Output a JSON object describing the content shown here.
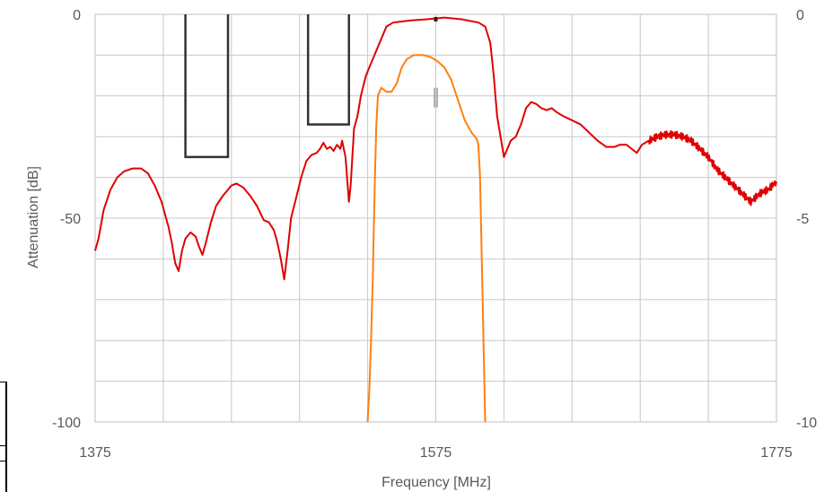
{
  "chart_data": {
    "type": "line",
    "title": "",
    "xlabel": "Frequency [MHz]",
    "ylabel": "Attenuation [dB]",
    "xlim": [
      1375,
      1775
    ],
    "ylim": [
      -100,
      0
    ],
    "y2lim": [
      -10,
      0
    ],
    "x_ticks": [
      "1375",
      "1575",
      "1775"
    ],
    "y_ticks": [
      "0",
      "-50",
      "-100"
    ],
    "y2_ticks": [
      "0",
      "-5",
      "-10"
    ],
    "grid": true,
    "colors": {
      "wideband": "#e00000",
      "passband": "#ff7f0e",
      "mask": "#333333",
      "grid": "#c8c8c8"
    },
    "series": [
      {
        "key": "wideband",
        "axis": "left",
        "points": [
          [
            1375,
            -58
          ],
          [
            1377,
            -55
          ],
          [
            1380,
            -48
          ],
          [
            1384,
            -43
          ],
          [
            1388,
            -40
          ],
          [
            1392,
            -38.5
          ],
          [
            1397,
            -37.8
          ],
          [
            1402,
            -37.8
          ],
          [
            1406,
            -39
          ],
          [
            1410,
            -42
          ],
          [
            1414,
            -46
          ],
          [
            1418,
            -52
          ],
          [
            1420,
            -56
          ],
          [
            1422,
            -61
          ],
          [
            1424,
            -63
          ],
          [
            1426,
            -58
          ],
          [
            1428,
            -55
          ],
          [
            1431,
            -53.5
          ],
          [
            1434,
            -54.5
          ],
          [
            1436,
            -57
          ],
          [
            1438,
            -59
          ],
          [
            1440,
            -56
          ],
          [
            1443,
            -51
          ],
          [
            1446,
            -47
          ],
          [
            1450,
            -44.5
          ],
          [
            1455,
            -42
          ],
          [
            1458,
            -41.5
          ],
          [
            1462,
            -42.5
          ],
          [
            1466,
            -44.5
          ],
          [
            1470,
            -47
          ],
          [
            1474,
            -50.5
          ],
          [
            1477,
            -51
          ],
          [
            1480,
            -53
          ],
          [
            1482,
            -56
          ],
          [
            1484,
            -60
          ],
          [
            1486,
            -65
          ],
          [
            1488,
            -58
          ],
          [
            1490,
            -50
          ],
          [
            1493,
            -45
          ],
          [
            1496,
            -40
          ],
          [
            1499,
            -36
          ],
          [
            1502,
            -34.5
          ],
          [
            1505,
            -34
          ],
          [
            1507,
            -33
          ],
          [
            1509,
            -31.5
          ],
          [
            1511,
            -33
          ],
          [
            1513,
            -32.5
          ],
          [
            1515,
            -33.5
          ],
          [
            1517,
            -32
          ],
          [
            1519,
            -33
          ],
          [
            1520,
            -31
          ],
          [
            1522,
            -35
          ],
          [
            1524,
            -46
          ],
          [
            1525,
            -42
          ],
          [
            1527,
            -28
          ],
          [
            1529,
            -25
          ],
          [
            1531,
            -20
          ],
          [
            1534,
            -15
          ],
          [
            1537,
            -12
          ],
          [
            1540,
            -9
          ],
          [
            1543,
            -6
          ],
          [
            1546,
            -3
          ],
          [
            1550,
            -2
          ],
          [
            1560,
            -1.5
          ],
          [
            1570,
            -1.2
          ],
          [
            1580,
            -0.8
          ],
          [
            1590,
            -1.2
          ],
          [
            1600,
            -2
          ],
          [
            1604,
            -3
          ],
          [
            1607,
            -7
          ],
          [
            1609,
            -15
          ],
          [
            1611,
            -25
          ],
          [
            1613,
            -30
          ],
          [
            1615,
            -35
          ],
          [
            1617,
            -33
          ],
          [
            1619,
            -31
          ],
          [
            1622,
            -30
          ],
          [
            1625,
            -27
          ],
          [
            1628,
            -23
          ],
          [
            1631,
            -21.5
          ],
          [
            1634,
            -22
          ],
          [
            1637,
            -23
          ],
          [
            1640,
            -23.5
          ],
          [
            1643,
            -23
          ],
          [
            1646,
            -24
          ],
          [
            1650,
            -25
          ],
          [
            1655,
            -26
          ],
          [
            1660,
            -27
          ],
          [
            1665,
            -29
          ],
          [
            1670,
            -31
          ],
          [
            1675,
            -32.5
          ],
          [
            1680,
            -32.5
          ],
          [
            1683,
            -32
          ],
          [
            1687,
            -32
          ],
          [
            1690,
            -33
          ],
          [
            1693,
            -34
          ],
          [
            1696,
            -32
          ],
          [
            1700,
            -31
          ],
          [
            1705,
            -30
          ],
          [
            1710,
            -29.5
          ],
          [
            1715,
            -29.5
          ],
          [
            1720,
            -30
          ],
          [
            1725,
            -31
          ],
          [
            1730,
            -33
          ],
          [
            1735,
            -35
          ],
          [
            1740,
            -38
          ],
          [
            1745,
            -40
          ],
          [
            1750,
            -42
          ],
          [
            1755,
            -44
          ],
          [
            1760,
            -46
          ],
          [
            1765,
            -44
          ],
          [
            1770,
            -43
          ],
          [
            1775,
            -41
          ]
        ]
      },
      {
        "key": "passband",
        "axis": "left",
        "points": [
          [
            1535,
            -100
          ],
          [
            1536,
            -92
          ],
          [
            1537,
            -80
          ],
          [
            1538,
            -65
          ],
          [
            1539,
            -45
          ],
          [
            1540,
            -28
          ],
          [
            1541,
            -20
          ],
          [
            1543,
            -18
          ],
          [
            1546,
            -19
          ],
          [
            1549,
            -19
          ],
          [
            1552,
            -17
          ],
          [
            1555,
            -13
          ],
          [
            1558,
            -11
          ],
          [
            1562,
            -10
          ],
          [
            1568,
            -10
          ],
          [
            1572,
            -10.5
          ],
          [
            1576,
            -11.5
          ],
          [
            1580,
            -13
          ],
          [
            1584,
            -16
          ],
          [
            1588,
            -21
          ],
          [
            1592,
            -26
          ],
          [
            1596,
            -29
          ],
          [
            1599,
            -30.5
          ],
          [
            1600,
            -32
          ],
          [
            1601,
            -40
          ],
          [
            1602,
            -60
          ],
          [
            1603,
            -80
          ],
          [
            1604,
            -100
          ]
        ]
      }
    ],
    "masks": [
      {
        "x": [
          1428,
          1453
        ],
        "y": -35
      },
      {
        "x": [
          1500,
          1524
        ],
        "y": -27
      }
    ],
    "markers": [
      {
        "x": 1575,
        "y": -1.3
      },
      {
        "x": 1575,
        "y": -18
      }
    ]
  }
}
